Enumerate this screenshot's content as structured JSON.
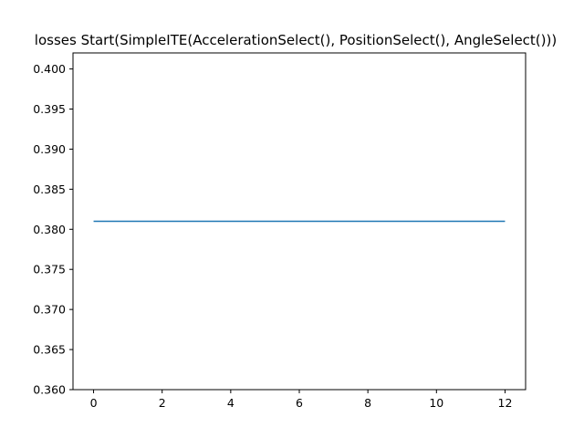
{
  "chart_data": {
    "type": "line",
    "title": "losses Start(SimpleITE(AccelerationSelect(), PositionSelect(), AngleSelect()))",
    "xlabel": "",
    "ylabel": "",
    "xlim": [
      -0.6,
      12.6
    ],
    "ylim": [
      0.36,
      0.402
    ],
    "xticks": [
      "0",
      "2",
      "4",
      "6",
      "8",
      "10",
      "12"
    ],
    "yticks": [
      "0.360",
      "0.365",
      "0.370",
      "0.375",
      "0.380",
      "0.385",
      "0.390",
      "0.395",
      "0.400"
    ],
    "grid": false,
    "series": [
      {
        "color": "#1f77b4",
        "x": [
          0,
          1,
          2,
          3,
          4,
          5,
          6,
          7,
          8,
          9,
          10,
          11,
          12
        ],
        "y": [
          0.381,
          0.381,
          0.381,
          0.381,
          0.381,
          0.381,
          0.381,
          0.381,
          0.381,
          0.381,
          0.381,
          0.381,
          0.381
        ]
      }
    ]
  }
}
